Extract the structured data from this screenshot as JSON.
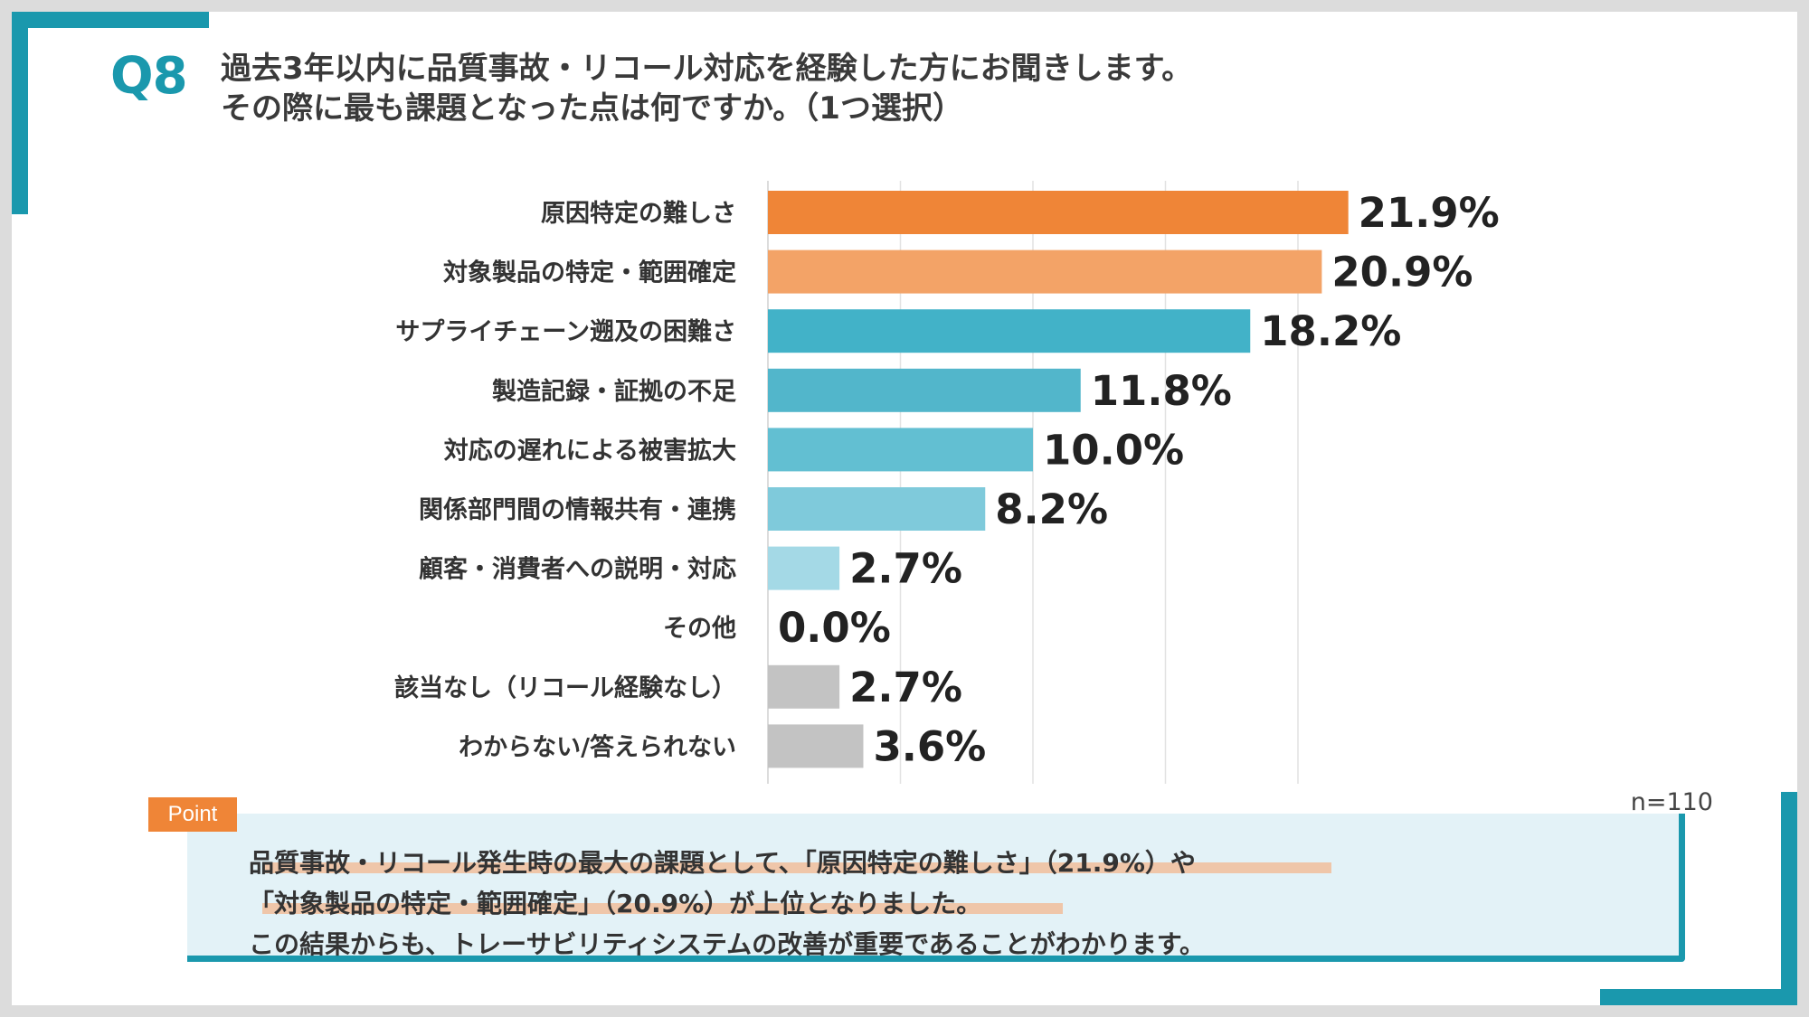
{
  "question": {
    "number": "Q8",
    "line1": "過去3年以内に品質事故・リコール対応を経験した方にお聞きします。",
    "line2": "その際に最も課題となった点は何ですか。（1つ選択）"
  },
  "chart_data": {
    "type": "bar",
    "orientation": "horizontal",
    "categories": [
      "原因特定の難しさ",
      "対象製品の特定・範囲確定",
      "サプライチェーン遡及の困難さ",
      "製造記録・証拠の不足",
      "対応の遅れによる被害拡大",
      "関係部門間の情報共有・連携",
      "顧客・消費者への説明・対応",
      "その他",
      "該当なし（リコール経験なし）",
      "わからない/答えられない"
    ],
    "values": [
      21.9,
      20.9,
      18.2,
      11.8,
      10.0,
      8.2,
      2.7,
      0.0,
      2.7,
      3.6
    ],
    "value_labels": [
      "21.9%",
      "20.9%",
      "18.2%",
      "11.8%",
      "10.0%",
      "8.2%",
      "2.7%",
      "0.0%",
      "2.7%",
      "3.6%"
    ],
    "colors": [
      "#ef8537",
      "#f3a367",
      "#42b2c8",
      "#52b6cb",
      "#62bfd2",
      "#7fcadb",
      "#a4d9e6",
      "#a4d9e6",
      "#c3c3c3",
      "#c3c3c3"
    ],
    "xlim": [
      0,
      25
    ],
    "grid": true,
    "legend": "none"
  },
  "sample_size": "n=110",
  "point": {
    "tag": "Point",
    "line1": "品質事故・リコール発生時の最大の課題として、「原因特定の難しさ」（21.9%）や",
    "line2": "「対象製品の特定・範囲確定」（20.9%）が上位となりました。",
    "line3": "この結果からも、トレーサビリティシステムの改善が重要であることがわかります。"
  }
}
